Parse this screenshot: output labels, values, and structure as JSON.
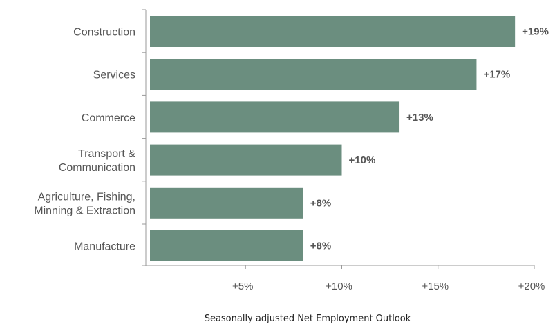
{
  "chart_data": {
    "type": "bar",
    "orientation": "horizontal",
    "title": "",
    "xlabel": "Seasonally adjusted Net Employment Outlook",
    "ylabel": "",
    "categories": [
      [
        "Construction"
      ],
      [
        "Services"
      ],
      [
        "Commerce"
      ],
      [
        "Transport &",
        "Communication"
      ],
      [
        "Agriculture, Fishing,",
        "Minning & Extraction"
      ],
      [
        "Manufacture"
      ]
    ],
    "values": [
      19,
      17,
      13,
      10,
      8,
      8
    ],
    "data_labels": [
      "+19%",
      "+17%",
      "+13%",
      "+10%",
      "+8%",
      "+8%"
    ],
    "xlim": [
      0,
      20
    ],
    "xticks": [
      5,
      10,
      15,
      20
    ],
    "xtick_labels": [
      "+5%",
      "+10%",
      "+15%",
      "+20%"
    ],
    "grid": false,
    "legend": "none",
    "colors": {
      "bar": "#6b8e7f",
      "axis": "#999999",
      "text": "#555555"
    }
  }
}
